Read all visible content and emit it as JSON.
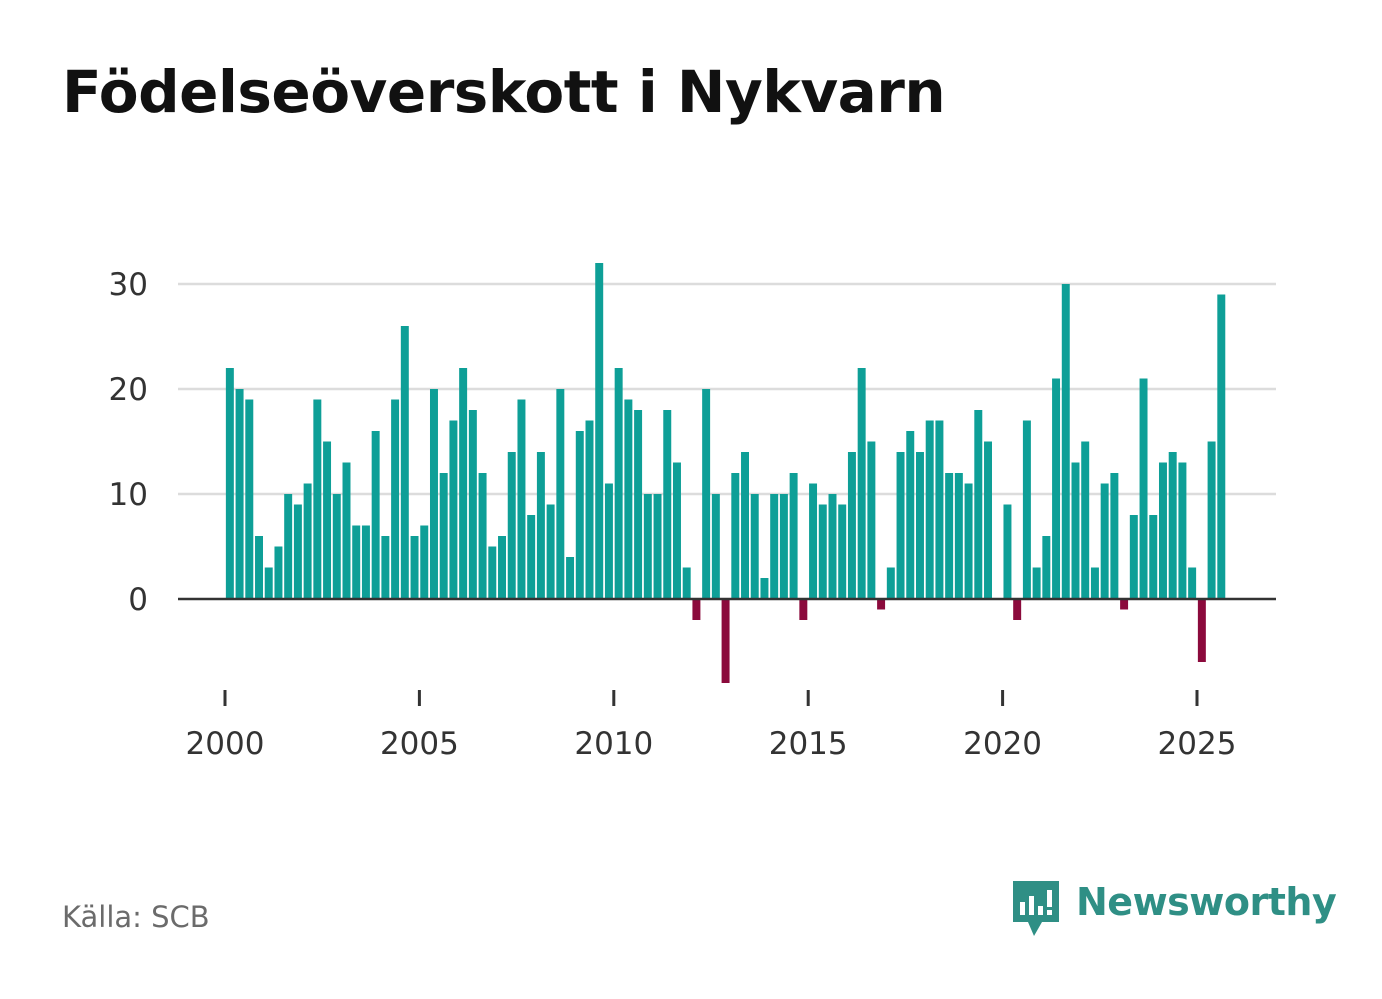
{
  "title": "Födelseöverskott i Nykvarn",
  "source": "Källa: SCB",
  "brand": "Newsworthy",
  "colors": {
    "positive": "#0e9f97",
    "negative": "#8b0a3c",
    "brand": "#2f8f85",
    "grid": "#dcdcdc",
    "axis": "#333333"
  },
  "chart_data": {
    "type": "bar",
    "title": "Födelseöverskott i Nykvarn",
    "xlabel": "",
    "ylabel": "",
    "x_start": 2000.0,
    "x_step": 0.25,
    "x_range": [
      1999.0,
      2026.25
    ],
    "ylim": [
      -9,
      32
    ],
    "yticks": [
      0,
      10,
      20,
      30
    ],
    "xticks": [
      2000,
      2005,
      2010,
      2015,
      2020,
      2025
    ],
    "grid": true,
    "values": [
      22,
      20,
      19,
      6,
      3,
      5,
      10,
      9,
      11,
      19,
      15,
      10,
      13,
      7,
      7,
      16,
      6,
      19,
      26,
      6,
      7,
      20,
      12,
      17,
      22,
      18,
      12,
      5,
      6,
      14,
      19,
      8,
      14,
      9,
      20,
      4,
      16,
      17,
      32,
      11,
      22,
      19,
      18,
      10,
      10,
      18,
      13,
      3,
      -2,
      20,
      10,
      -8,
      12,
      14,
      10,
      2,
      10,
      10,
      12,
      -2,
      11,
      9,
      10,
      9,
      14,
      22,
      15,
      -1,
      3,
      14,
      16,
      14,
      17,
      17,
      12,
      12,
      11,
      18,
      15,
      0,
      9,
      -2,
      17,
      3,
      6,
      21,
      30,
      13,
      15,
      3,
      11,
      12,
      -1,
      8,
      21,
      8,
      13,
      14,
      13,
      3,
      -6,
      15,
      29
    ]
  }
}
